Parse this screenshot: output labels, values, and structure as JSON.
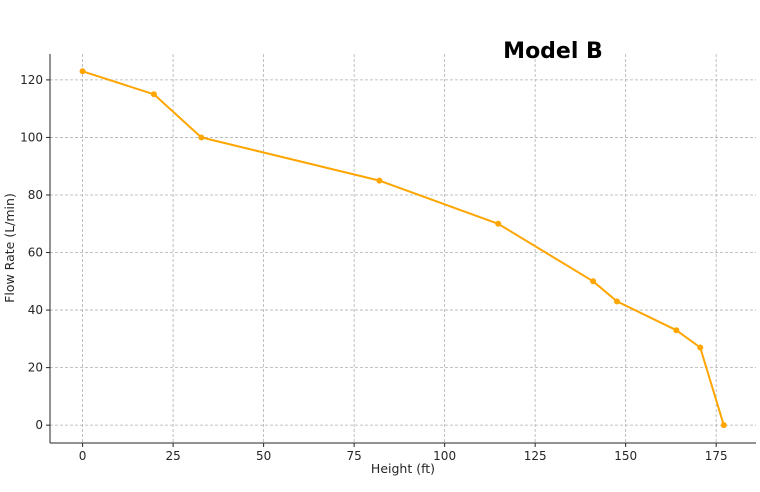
{
  "chart_data": {
    "type": "line",
    "title": "Model B",
    "xlabel": "Height (ft)",
    "ylabel": "Flow Rate (L/min)",
    "xlim": [
      -9,
      186
    ],
    "ylim": [
      -6.2,
      129
    ],
    "xticks": [
      0,
      25,
      50,
      75,
      100,
      125,
      150,
      175
    ],
    "yticks": [
      0,
      20,
      40,
      60,
      80,
      100,
      120
    ],
    "grid": true,
    "series": [
      {
        "color": "#FFA500",
        "x": [
          0,
          19.7,
          32.8,
          82,
          114.8,
          141,
          147.6,
          164,
          170.6,
          177.1
        ],
        "y": [
          123,
          115,
          100,
          85,
          70,
          50,
          43,
          33,
          27,
          0
        ]
      }
    ]
  }
}
